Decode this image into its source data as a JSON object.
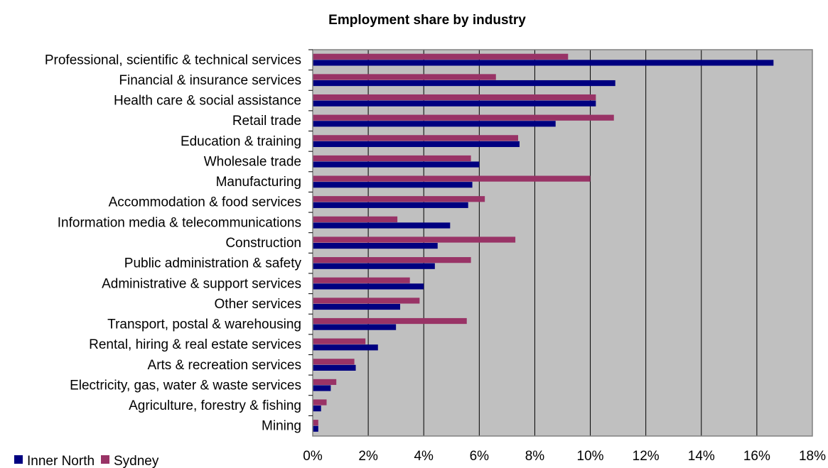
{
  "chart_data": {
    "type": "bar",
    "orientation": "horizontal",
    "title": "Employment share by industry",
    "xlabel": "",
    "ylabel": "",
    "xlim": [
      0,
      18
    ],
    "x_ticks": [
      "0%",
      "2%",
      "4%",
      "6%",
      "8%",
      "10%",
      "12%",
      "14%",
      "16%",
      "18%"
    ],
    "grid": "vertical",
    "legend_position": "bottom-left",
    "plot_background": "#C0C0C0",
    "categories": [
      "Professional, scientific & technical services",
      "Financial & insurance services",
      "Health care & social assistance",
      "Retail trade",
      "Education & training",
      "Wholesale trade",
      "Manufacturing",
      "Accommodation & food services",
      "Information media & telecommunications",
      "Construction",
      "Public administration & safety",
      "Administrative & support services",
      "Other services",
      "Transport, postal & warehousing",
      "Rental, hiring & real estate services",
      "Arts & recreation services",
      "Electricity, gas, water & waste services",
      "Agriculture, forestry & fishing",
      "Mining"
    ],
    "series": [
      {
        "name": "Inner North",
        "color": "#000080",
        "values": [
          16.6,
          10.9,
          10.2,
          8.75,
          7.45,
          6.0,
          5.75,
          5.6,
          4.95,
          4.5,
          4.4,
          4.0,
          3.15,
          3.0,
          2.35,
          1.55,
          0.65,
          0.3,
          0.2
        ]
      },
      {
        "name": "Sydney",
        "color": "#993366",
        "values": [
          9.2,
          6.6,
          10.2,
          10.85,
          7.4,
          5.7,
          10.0,
          6.2,
          3.05,
          7.3,
          5.7,
          3.5,
          3.85,
          5.55,
          1.9,
          1.5,
          0.85,
          0.5,
          0.2
        ]
      }
    ]
  }
}
